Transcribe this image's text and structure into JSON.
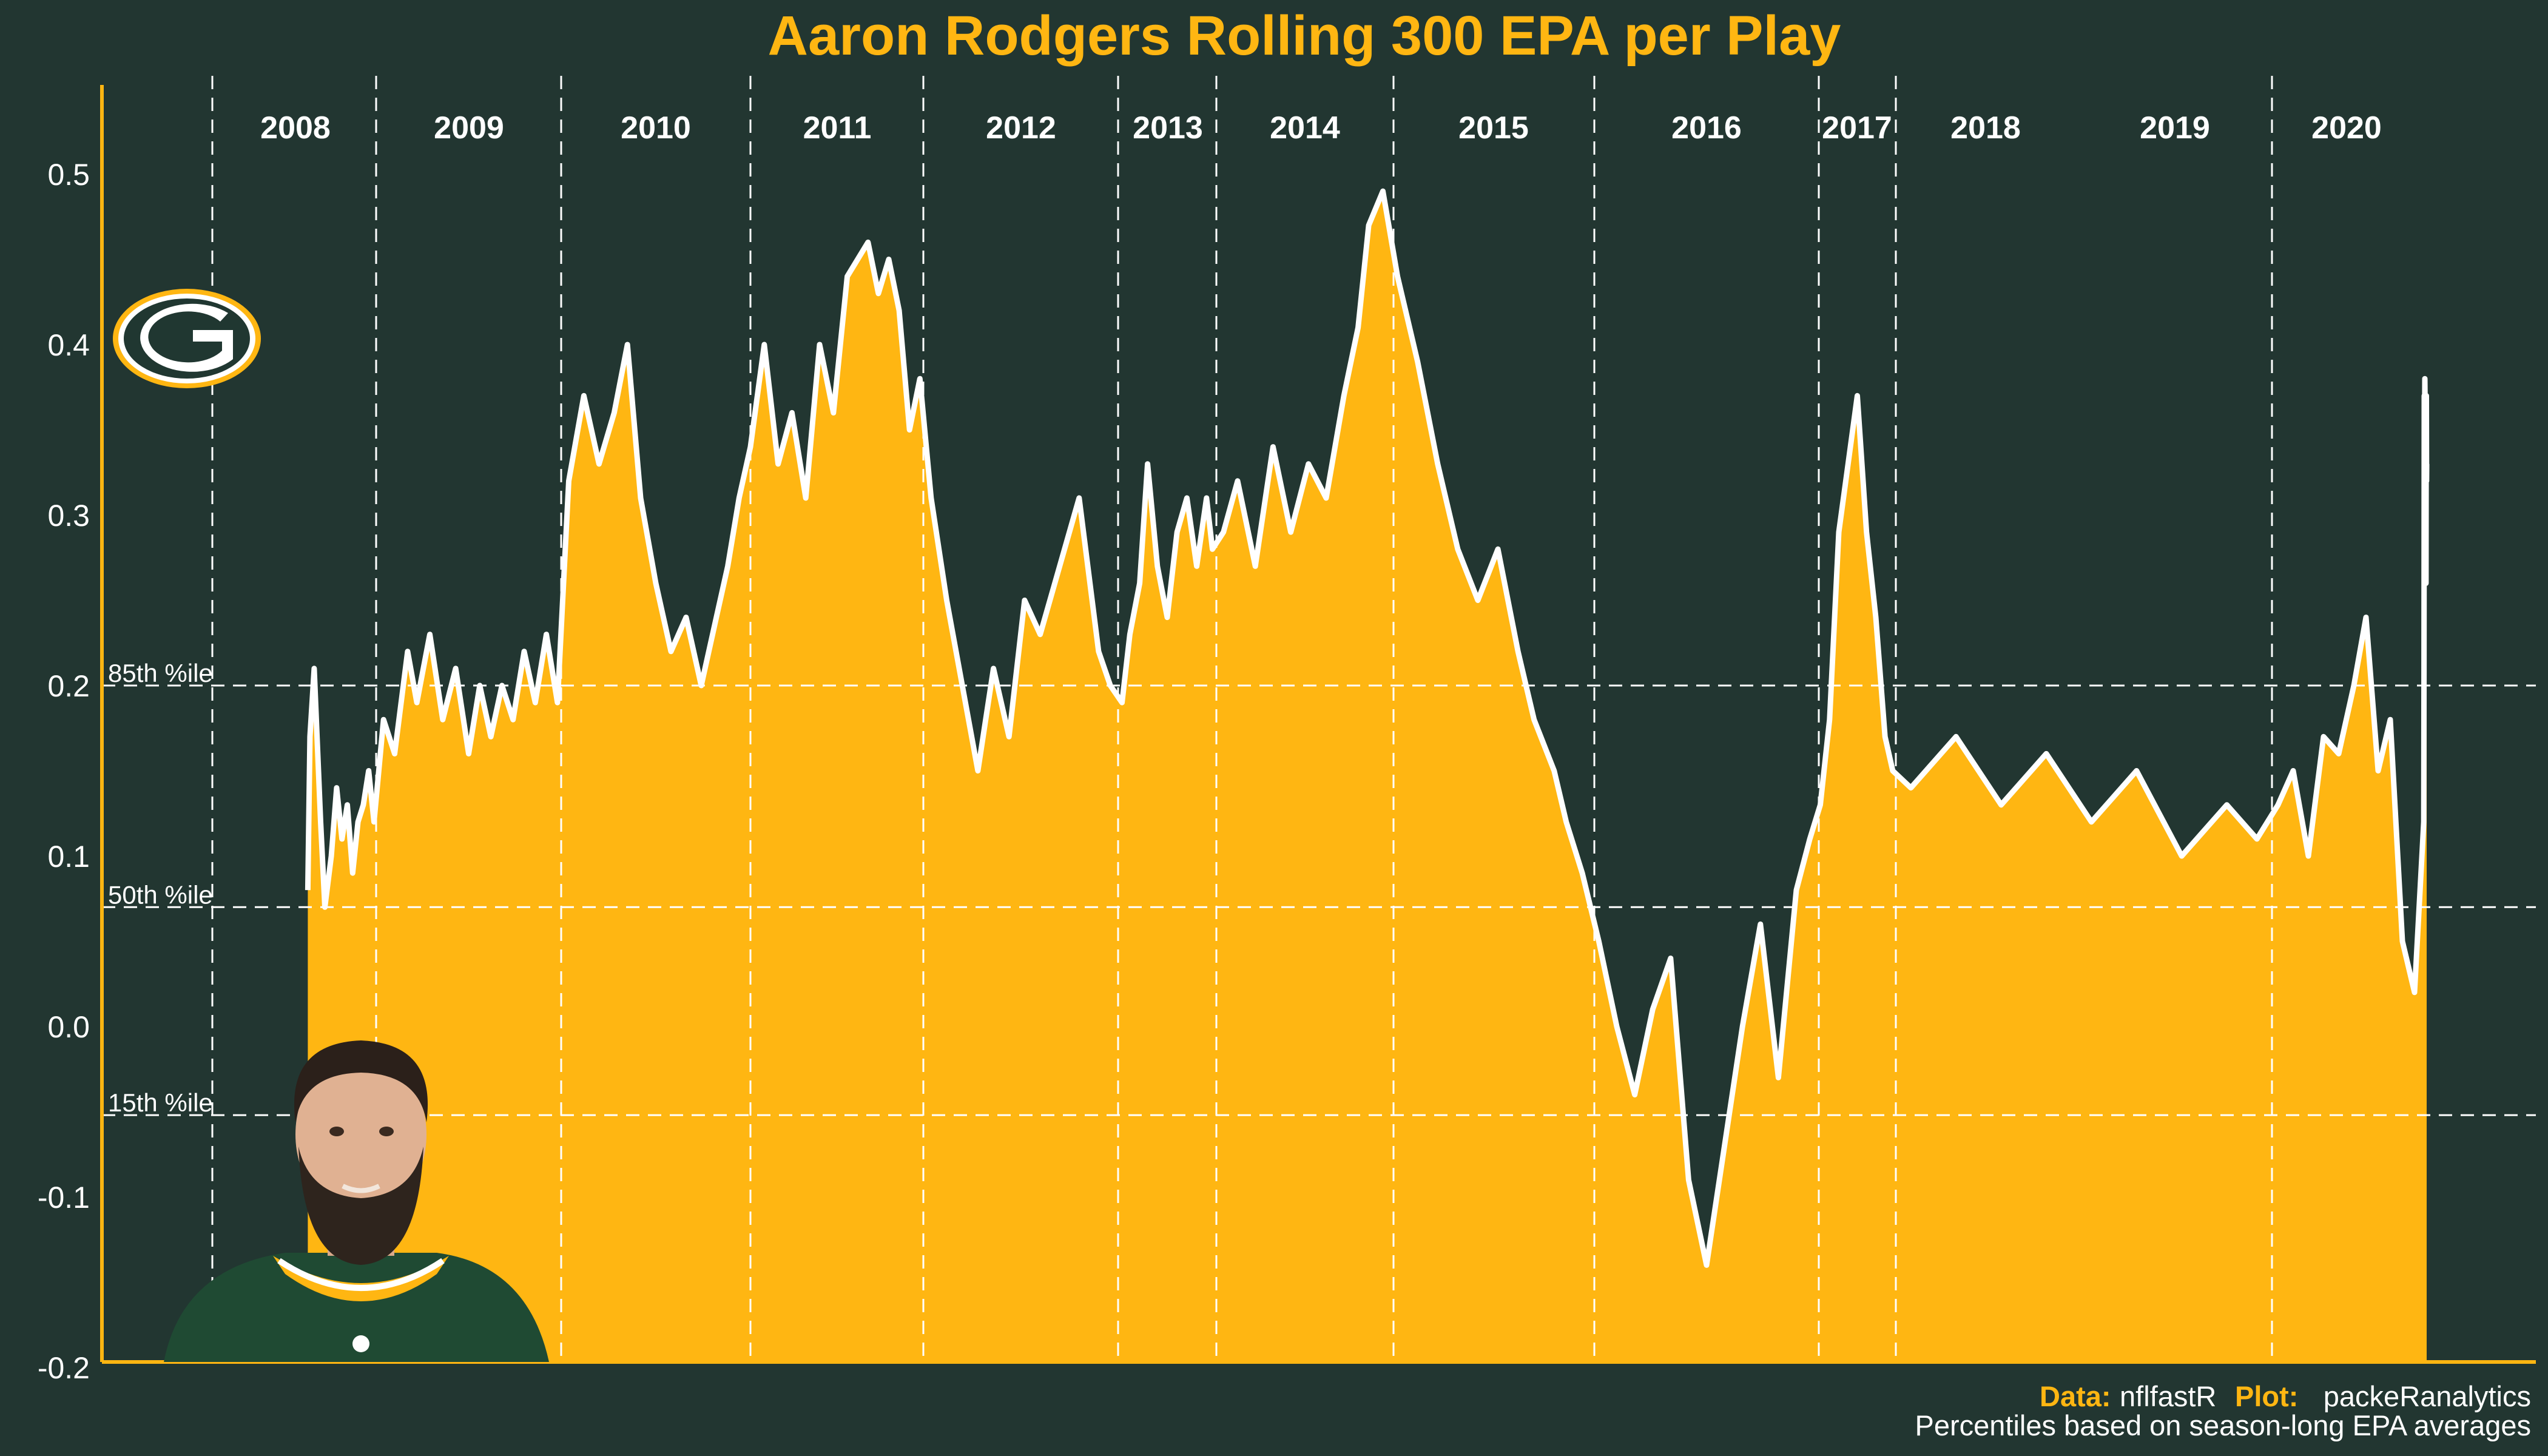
{
  "chart_data": {
    "type": "area",
    "title": "Aaron Rodgers Rolling 300 EPA per Play",
    "xlabel": "",
    "ylabel": "",
    "ylim": [
      -0.2,
      0.55
    ],
    "y_ticks": [
      "0.5",
      "0.4",
      "0.3",
      "0.2",
      "0.1",
      "0.0",
      "-0.1",
      "-0.2"
    ],
    "y_tick_values": [
      0.5,
      0.4,
      0.3,
      0.2,
      0.1,
      0.0,
      -0.1,
      -0.2
    ],
    "grid": false,
    "fill_color": "#FFB612",
    "line_color": "#ffffff",
    "background": "#223631",
    "seasons": [
      {
        "label": "2008",
        "start": 0,
        "end": 1
      },
      {
        "label": "2009",
        "start": 1,
        "end": 2
      },
      {
        "label": "2010",
        "start": 2,
        "end": 3
      },
      {
        "label": "2011",
        "start": 3,
        "end": 4
      },
      {
        "label": "2012",
        "start": 4,
        "end": 5
      },
      {
        "label": "2013",
        "start": 5,
        "end": 6
      },
      {
        "label": "2014",
        "start": 6,
        "end": 7
      },
      {
        "label": "2015",
        "start": 7,
        "end": 8
      },
      {
        "label": "2016",
        "start": 8,
        "end": 9
      },
      {
        "label": "2017",
        "start": 9,
        "end": 10
      },
      {
        "label": "2018",
        "start": 10,
        "end": 11
      },
      {
        "label": "2019",
        "start": 11,
        "end": 12
      },
      {
        "label": "2020",
        "start": 12,
        "end": 13
      }
    ],
    "season_boundaries": [
      0,
      1,
      2,
      3,
      4,
      5,
      6,
      7,
      8,
      9,
      10,
      11,
      12,
      13
    ],
    "reference_lines": [
      {
        "label": "85th %ile",
        "value": 0.2
      },
      {
        "label": "50th %ile",
        "value": 0.07
      },
      {
        "label": "15th %ile",
        "value": -0.052
      }
    ],
    "series": [
      {
        "x": [
          0.36,
          0.38,
          0.42,
          0.48,
          0.52,
          0.58,
          0.63,
          0.68,
          0.73,
          0.78,
          0.83,
          0.88,
          0.93,
          0.98,
          1.04,
          1.1,
          1.17,
          1.22,
          1.29,
          1.36,
          1.43,
          1.5,
          1.56,
          1.62,
          1.68,
          1.74,
          1.8,
          1.86,
          1.92,
          1.98,
          2.04,
          2.12,
          2.2,
          2.28,
          2.35,
          2.42,
          2.5,
          2.58,
          2.66,
          2.74,
          2.82,
          2.88,
          2.94,
          3.0,
          3.08,
          3.16,
          3.24,
          3.32,
          3.4,
          3.48,
          3.56,
          3.62,
          3.68,
          3.74,
          3.8,
          3.86,
          3.92,
          3.98,
          4.04,
          4.12,
          4.2,
          4.28,
          4.36,
          4.44,
          4.52,
          4.6,
          4.7,
          4.8,
          4.9,
          4.96,
          5.04,
          5.12,
          5.22,
          5.3,
          5.4,
          5.5,
          5.6,
          5.7,
          5.8,
          5.9,
          5.96,
          6.04,
          6.12,
          6.22,
          6.32,
          6.42,
          6.52,
          6.62,
          6.72,
          6.8,
          6.86,
          6.94,
          7.02,
          7.12,
          7.22,
          7.32,
          7.42,
          7.52,
          7.62,
          7.7,
          7.8,
          7.86,
          7.94,
          8.02,
          8.1,
          8.18,
          8.26,
          8.34,
          8.42,
          8.5,
          8.58,
          8.66,
          8.74,
          8.82,
          8.9,
          8.96,
          9.02,
          9.14,
          9.26,
          9.38,
          9.5,
          9.62,
          9.74,
          9.86,
          9.96,
          10.04,
          10.16,
          10.28,
          10.4,
          10.52,
          10.64,
          10.76,
          10.88,
          10.96,
          11.04,
          11.14,
          11.24,
          11.34,
          11.44,
          11.54,
          11.62,
          11.7,
          11.78,
          11.86,
          11.94,
          12.04,
          12.12,
          12.2,
          12.3,
          12.4,
          12.5,
          12.6,
          12.7,
          12.78,
          12.84,
          12.9,
          12.96,
          13.0
        ],
        "y": [
          0.08,
          0.17,
          0.21,
          0.12,
          0.07,
          0.1,
          0.14,
          0.11,
          0.13,
          0.09,
          0.12,
          0.13,
          0.15,
          0.12,
          0.18,
          0.16,
          0.22,
          0.19,
          0.23,
          0.18,
          0.21,
          0.16,
          0.2,
          0.17,
          0.2,
          0.18,
          0.22,
          0.19,
          0.23,
          0.19,
          0.32,
          0.37,
          0.33,
          0.36,
          0.4,
          0.31,
          0.26,
          0.22,
          0.24,
          0.2,
          0.24,
          0.27,
          0.31,
          0.34,
          0.4,
          0.33,
          0.36,
          0.31,
          0.4,
          0.36,
          0.44,
          0.45,
          0.46,
          0.43,
          0.45,
          0.42,
          0.35,
          0.38,
          0.31,
          0.25,
          0.2,
          0.15,
          0.21,
          0.17,
          0.25,
          0.23,
          0.27,
          0.31,
          0.22,
          0.2,
          0.19,
          0.23,
          0.26,
          0.33,
          0.27,
          0.24,
          0.29,
          0.31,
          0.27,
          0.31,
          0.28,
          0.29,
          0.32,
          0.27,
          0.34,
          0.29,
          0.33,
          0.31,
          0.37,
          0.41,
          0.47,
          0.49,
          0.44,
          0.39,
          0.33,
          0.28,
          0.25,
          0.28,
          0.22,
          0.18,
          0.15,
          0.12,
          0.09,
          0.05,
          0.0,
          -0.04,
          0.01,
          0.04,
          -0.09,
          -0.14,
          -0.07,
          0.0,
          0.06,
          -0.03,
          0.08,
          0.11,
          0.13,
          0.18,
          0.29,
          0.33,
          0.37,
          0.29,
          0.24,
          0.17,
          0.15,
          0.14,
          0.17,
          0.13,
          0.16,
          0.12,
          0.15,
          0.1,
          0.13,
          0.11,
          0.13,
          0.15,
          0.1,
          0.17,
          0.16,
          0.2,
          0.24,
          0.15,
          0.18,
          0.05,
          0.02,
          0.12,
          0.21,
          0.37,
          0.33,
          0.38,
          0.36,
          0.34,
          0.29,
          0.26,
          0.35,
          0.37,
          0.32,
          0.33
        ]
      }
    ],
    "caption": {
      "line1_parts": [
        {
          "text": "Data: ",
          "bold": true
        },
        {
          "text": "nflfastR ",
          "bold": false
        },
        {
          "text": "Plot: ",
          "bold": true
        },
        {
          "text": "packeRanalytics",
          "bold": false
        }
      ],
      "line2": "Percentiles based on season-long EPA averages"
    }
  }
}
